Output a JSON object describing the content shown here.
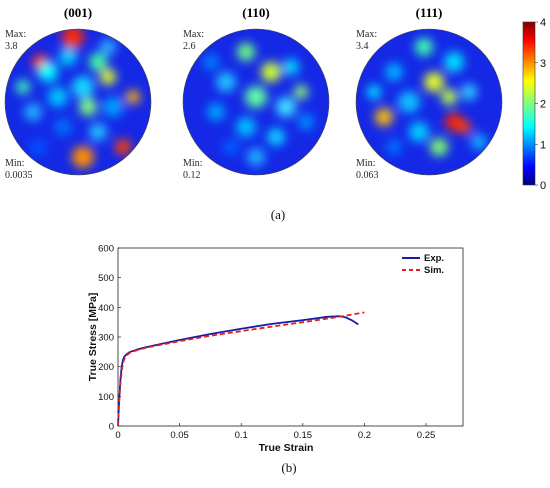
{
  "chart_data": [
    {
      "type": "heatmap",
      "subtype": "pole-figure",
      "panel": "(a)",
      "colormap": "jet",
      "colorbar": {
        "min": 0,
        "max": 4,
        "ticks": [
          "0",
          "1",
          "2",
          "3",
          "4"
        ]
      },
      "pole_figures": [
        {
          "title": "(001)",
          "max_label": "Max:",
          "max_value": "3.8",
          "min_label": "Min:",
          "min_value": "0.0035"
        },
        {
          "title": "(110)",
          "max_label": "Max:",
          "max_value": "2.6",
          "min_label": "Min:",
          "min_value": "0.12"
        },
        {
          "title": "(111)",
          "max_label": "Max:",
          "max_value": "3.4",
          "min_label": "Min:",
          "min_value": "0.063"
        }
      ]
    },
    {
      "type": "line",
      "panel": "(b)",
      "xlabel": "True Strain",
      "ylabel": "True Stress [MPa]",
      "xlim": [
        0,
        0.28
      ],
      "ylim": [
        0,
        600
      ],
      "xticks": [
        "0",
        "0.05",
        "0.1",
        "0.15",
        "0.2",
        "0.25"
      ],
      "xtick_values": [
        0,
        0.05,
        0.1,
        0.15,
        0.2,
        0.25
      ],
      "yticks": [
        "0",
        "100",
        "200",
        "300",
        "400",
        "500",
        "600"
      ],
      "ytick_values": [
        0,
        100,
        200,
        300,
        400,
        500,
        600
      ],
      "legend_position": "top-right",
      "grid": false,
      "series": [
        {
          "name": "Exp.",
          "color": "#1a1aa8",
          "style": "solid",
          "points": [
            [
              0,
              0
            ],
            [
              0.001,
              90
            ],
            [
              0.002,
              160
            ],
            [
              0.003,
              200
            ],
            [
              0.004,
              222
            ],
            [
              0.005,
              233
            ],
            [
              0.007,
              242
            ],
            [
              0.01,
              250
            ],
            [
              0.015,
              257
            ],
            [
              0.02,
              263
            ],
            [
              0.03,
              272
            ],
            [
              0.05,
              290
            ],
            [
              0.075,
              310
            ],
            [
              0.1,
              328
            ],
            [
              0.125,
              344
            ],
            [
              0.15,
              357
            ],
            [
              0.17,
              368
            ],
            [
              0.18,
              370
            ],
            [
              0.185,
              366
            ],
            [
              0.19,
              356
            ],
            [
              0.195,
              342
            ]
          ]
        },
        {
          "name": "Sim.",
          "color": "#e02020",
          "style": "dashed",
          "points": [
            [
              0,
              0
            ],
            [
              0.001,
              80
            ],
            [
              0.002,
              145
            ],
            [
              0.003,
              185
            ],
            [
              0.004,
              210
            ],
            [
              0.005,
              225
            ],
            [
              0.007,
              238
            ],
            [
              0.01,
              248
            ],
            [
              0.015,
              255
            ],
            [
              0.02,
              261
            ],
            [
              0.03,
              270
            ],
            [
              0.05,
              286
            ],
            [
              0.075,
              304
            ],
            [
              0.1,
              320
            ],
            [
              0.125,
              335
            ],
            [
              0.15,
              350
            ],
            [
              0.17,
              362
            ],
            [
              0.185,
              372
            ],
            [
              0.2,
              383
            ]
          ]
        }
      ]
    }
  ],
  "captions": {
    "a": "(a)",
    "b": "(b)"
  }
}
